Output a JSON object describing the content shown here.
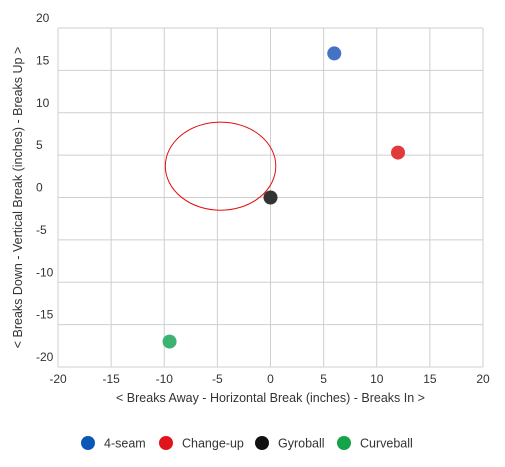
{
  "chart_data": {
    "type": "scatter",
    "xlabel": "< Breaks Away - Horizontal Break (inches) - Breaks In >",
    "ylabel": "< Breaks Down - Vertical Break (inches) - Breaks Up >",
    "xlim": [
      -20,
      20
    ],
    "ylim": [
      -20,
      20
    ],
    "x_ticks": [
      -20,
      -15,
      -10,
      -5,
      0,
      5,
      10,
      15,
      20
    ],
    "y_ticks": [
      -20,
      -15,
      -10,
      -5,
      0,
      5,
      10,
      15,
      20
    ],
    "grid": true,
    "legend_position": "bottom",
    "series": [
      {
        "name": "4-seam",
        "color": "#4472C4",
        "legend_color": "#0B57B5",
        "points": [
          {
            "x": 6,
            "y": 17
          }
        ]
      },
      {
        "name": "Change-up",
        "color": "#E03A3A",
        "legend_color": "#E0141B",
        "points": [
          {
            "x": 12,
            "y": 5.3
          }
        ]
      },
      {
        "name": "Gyroball",
        "color": "#333333",
        "legend_color": "#111111",
        "points": [
          {
            "x": 0,
            "y": 0
          }
        ]
      },
      {
        "name": "Curveball",
        "color": "#3CB371",
        "legend_color": "#16A34A",
        "points": [
          {
            "x": -9.5,
            "y": -17
          }
        ]
      }
    ],
    "annotations": [
      {
        "type": "circle",
        "color": "#E01010",
        "cx": -4.7,
        "cy": 3.7,
        "radius": 5.2
      }
    ]
  }
}
